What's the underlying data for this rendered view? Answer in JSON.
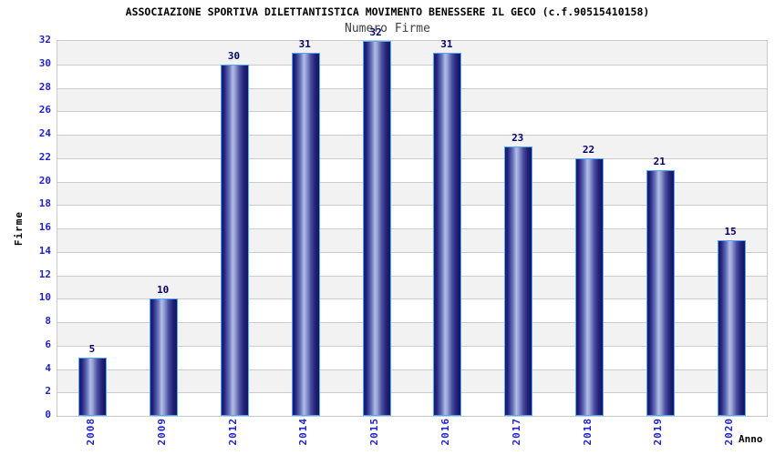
{
  "title": "ASSOCIAZIONE SPORTIVA DILETTANTISTICA MOVIMENTO BENESSERE IL GECO (c.f.90515410158)",
  "subtitle": "Numero Firme",
  "chart_data": {
    "type": "bar",
    "title": "Numero Firme",
    "categories": [
      "2008",
      "2009",
      "2012",
      "2014",
      "2015",
      "2016",
      "2017",
      "2018",
      "2019",
      "2020"
    ],
    "values": [
      5,
      10,
      30,
      31,
      32,
      31,
      23,
      22,
      21,
      15
    ],
    "xlabel": "Anno",
    "ylabel": "Firme",
    "ylim": [
      0,
      32
    ],
    "ytick_step": 2,
    "yticks": [
      0,
      2,
      4,
      6,
      8,
      10,
      12,
      14,
      16,
      18,
      20,
      22,
      24,
      26,
      28,
      30,
      32
    ],
    "grid": true,
    "bar_labels_shown": true,
    "legend": "none"
  },
  "colors": {
    "tick_label": "#2222cc",
    "bar_value_label": "#000066",
    "bar_border": "#4da6ff",
    "bar_dark": "#1a1a6e",
    "bar_light": "#b2bce8",
    "band_gray": "#f2f2f2",
    "band_white": "#ffffff",
    "grid_line": "#cccccc",
    "plot_border": "#c9c9c9",
    "title_color": "#000000",
    "subtitle_color": "#404040"
  }
}
